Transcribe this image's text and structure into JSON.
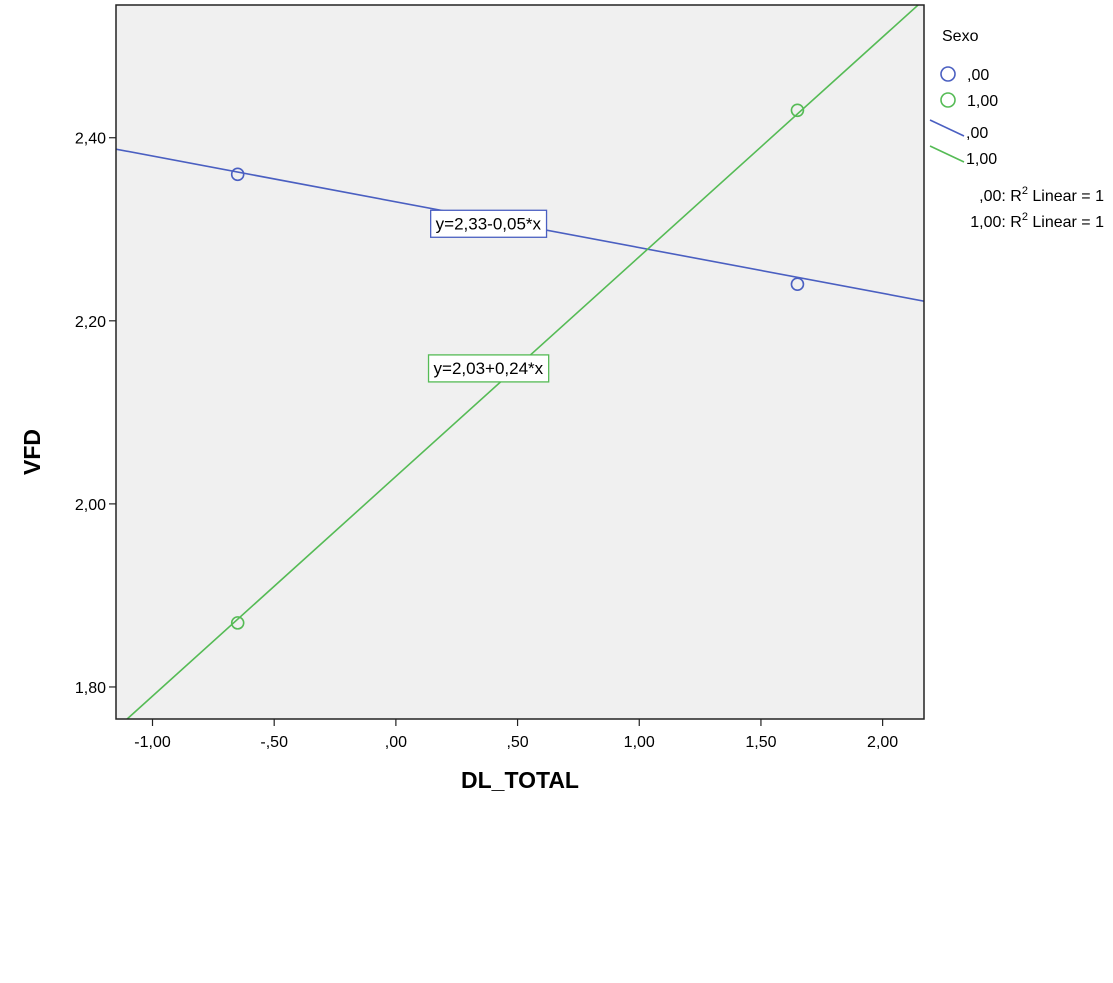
{
  "chart_data": {
    "type": "scatter",
    "xlabel": "DL_TOTAL",
    "ylabel": "VFD",
    "xlim": [
      -1.15,
      2.17
    ],
    "ylim": [
      1.765,
      2.545
    ],
    "x_ticks": [
      -1.0,
      -0.5,
      0.0,
      0.5,
      1.0,
      1.5,
      2.0
    ],
    "x_tick_labels": [
      "-1,00",
      "-,50",
      ",00",
      ",50",
      "1,00",
      "1,50",
      "2,00"
    ],
    "y_ticks": [
      1.8,
      2.0,
      2.2,
      2.4
    ],
    "y_tick_labels": [
      "1,80",
      "2,00",
      "2,20",
      "2,40"
    ],
    "grid": false,
    "plot_background": "#f0f0f0",
    "legend": {
      "title": "Sexo",
      "position": "right",
      "marker_entries": [
        ",00",
        "1,00"
      ],
      "line_entries": [
        ",00",
        "1,00"
      ],
      "r2_entries": [
        {
          "prefix": ",00: R",
          "sup": "2",
          "suffix": " Linear = 1"
        },
        {
          "prefix": "1,00: R",
          "sup": "2",
          "suffix": " Linear = 1"
        }
      ]
    },
    "series": [
      {
        "name": ",00",
        "color": "#4a5fc1",
        "points": [
          {
            "x": -0.65,
            "y": 2.36
          },
          {
            "x": 1.65,
            "y": 2.24
          }
        ],
        "fit": {
          "intercept": 2.33,
          "slope": -0.05,
          "label": "y=2,33-0,05*x",
          "label_at": {
            "x": 0.38,
            "y": 2.306
          }
        }
      },
      {
        "name": "1,00",
        "color": "#55bb55",
        "points": [
          {
            "x": -0.65,
            "y": 1.87
          },
          {
            "x": 1.65,
            "y": 2.43
          }
        ],
        "fit": {
          "intercept": 2.03,
          "slope": 0.24,
          "label": "y=2,03+0,24*x",
          "label_at": {
            "x": 0.38,
            "y": 2.148
          }
        }
      }
    ]
  }
}
